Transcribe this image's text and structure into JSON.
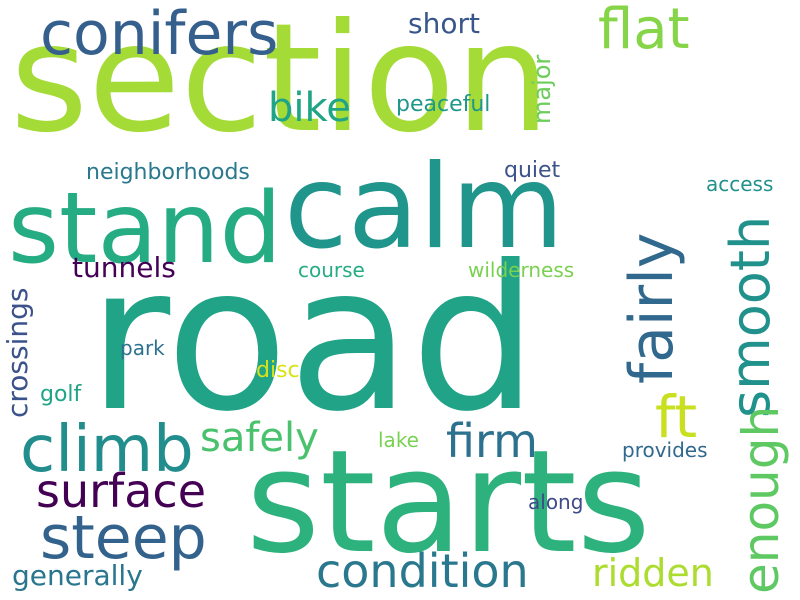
{
  "words": [
    {
      "id": "section",
      "text": "section",
      "color": "#a5db36"
    },
    {
      "id": "road",
      "text": "road",
      "color": "#20a386"
    },
    {
      "id": "starts",
      "text": "starts",
      "color": "#2db27d"
    },
    {
      "id": "calm",
      "text": "calm",
      "color": "#1f958b"
    },
    {
      "id": "stand",
      "text": "stand",
      "color": "#25ac82"
    },
    {
      "id": "conifers",
      "text": "conifers",
      "color": "#355f8d"
    },
    {
      "id": "flat",
      "text": "flat",
      "color": "#86d549"
    },
    {
      "id": "climb",
      "text": "climb",
      "color": "#228d8d"
    },
    {
      "id": "steep",
      "text": "steep",
      "color": "#33638d"
    },
    {
      "id": "surface",
      "text": "surface",
      "color": "#440154"
    },
    {
      "id": "condition",
      "text": "condition",
      "color": "#2a788e"
    },
    {
      "id": "firm",
      "text": "firm",
      "color": "#2c728e"
    },
    {
      "id": "safely",
      "text": "safely",
      "color": "#4ac16d"
    },
    {
      "id": "bike",
      "text": "bike",
      "color": "#20a486"
    },
    {
      "id": "ridden",
      "text": "ridden",
      "color": "#addc30"
    },
    {
      "id": "ft",
      "text": "ft",
      "color": "#c8e020"
    },
    {
      "id": "generally",
      "text": "generally",
      "color": "#2a768e"
    },
    {
      "id": "tunnels",
      "text": "tunnels",
      "color": "#440154"
    },
    {
      "id": "short",
      "text": "short",
      "color": "#39568c"
    },
    {
      "id": "peaceful",
      "text": "peaceful",
      "color": "#1f978b"
    },
    {
      "id": "neighborhoods",
      "text": "neighborhoods",
      "color": "#2a788e"
    },
    {
      "id": "quiet",
      "text": "quiet",
      "color": "#3b528b"
    },
    {
      "id": "access",
      "text": "access",
      "color": "#21918c"
    },
    {
      "id": "course",
      "text": "course",
      "color": "#25ac82"
    },
    {
      "id": "wilderness",
      "text": "wilderness",
      "color": "#7ad151"
    },
    {
      "id": "park",
      "text": "park",
      "color": "#2c728e"
    },
    {
      "id": "disc",
      "text": "disc",
      "color": "#d8e219"
    },
    {
      "id": "golf",
      "text": "golf",
      "color": "#20a386"
    },
    {
      "id": "lake",
      "text": "lake",
      "color": "#7ad151"
    },
    {
      "id": "provides",
      "text": "provides",
      "color": "#31688e"
    },
    {
      "id": "along",
      "text": "along",
      "color": "#3e4a89"
    },
    {
      "id": "fairly",
      "text": "fairly",
      "color": "#31688e"
    },
    {
      "id": "smooth",
      "text": "smooth",
      "color": "#21918c"
    },
    {
      "id": "enough",
      "text": "enough",
      "color": "#5ec962"
    },
    {
      "id": "major",
      "text": "major",
      "color": "#6ccd5a"
    },
    {
      "id": "crossings",
      "text": "crossings",
      "color": "#3b528b"
    }
  ]
}
